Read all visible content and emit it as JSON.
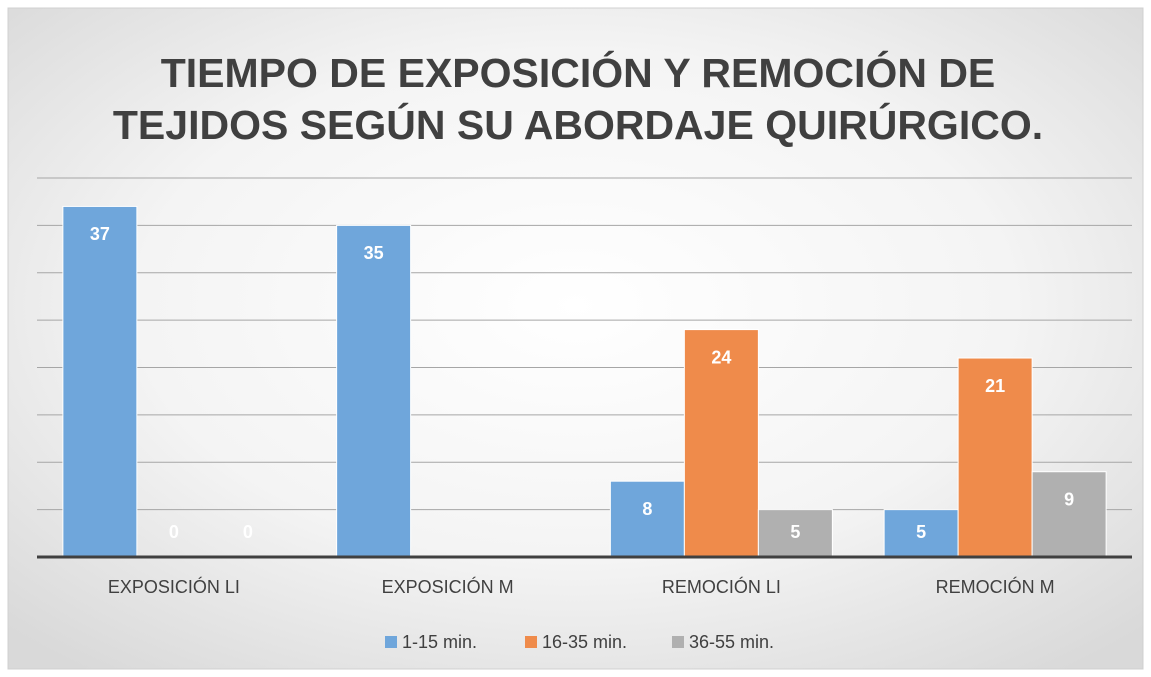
{
  "chart_data": {
    "type": "bar",
    "title": [
      "TIEMPO DE EXPOSICIÓN Y REMOCIÓN DE",
      "TEJIDOS SEGÚN SU ABORDAJE QUIRÚRGICO."
    ],
    "categories": [
      "EXPOSICIÓN LI",
      "EXPOSICIÓN M",
      "REMOCIÓN LI",
      "REMOCIÓN M"
    ],
    "series": [
      {
        "name": "1-15 min.",
        "color": "#6fa6db",
        "values": [
          37,
          35,
          8,
          5
        ]
      },
      {
        "name": "16-35 min.",
        "color": "#ef8b4b",
        "values": [
          0,
          null,
          24,
          21
        ]
      },
      {
        "name": "36-55 min.",
        "color": "#b0b0b0",
        "values": [
          0,
          null,
          5,
          9
        ]
      }
    ],
    "ylim": [
      0,
      40
    ],
    "yticks": [
      0,
      5,
      10,
      15,
      20,
      25,
      30,
      35,
      40
    ],
    "grid": true,
    "legend": "bottom"
  }
}
